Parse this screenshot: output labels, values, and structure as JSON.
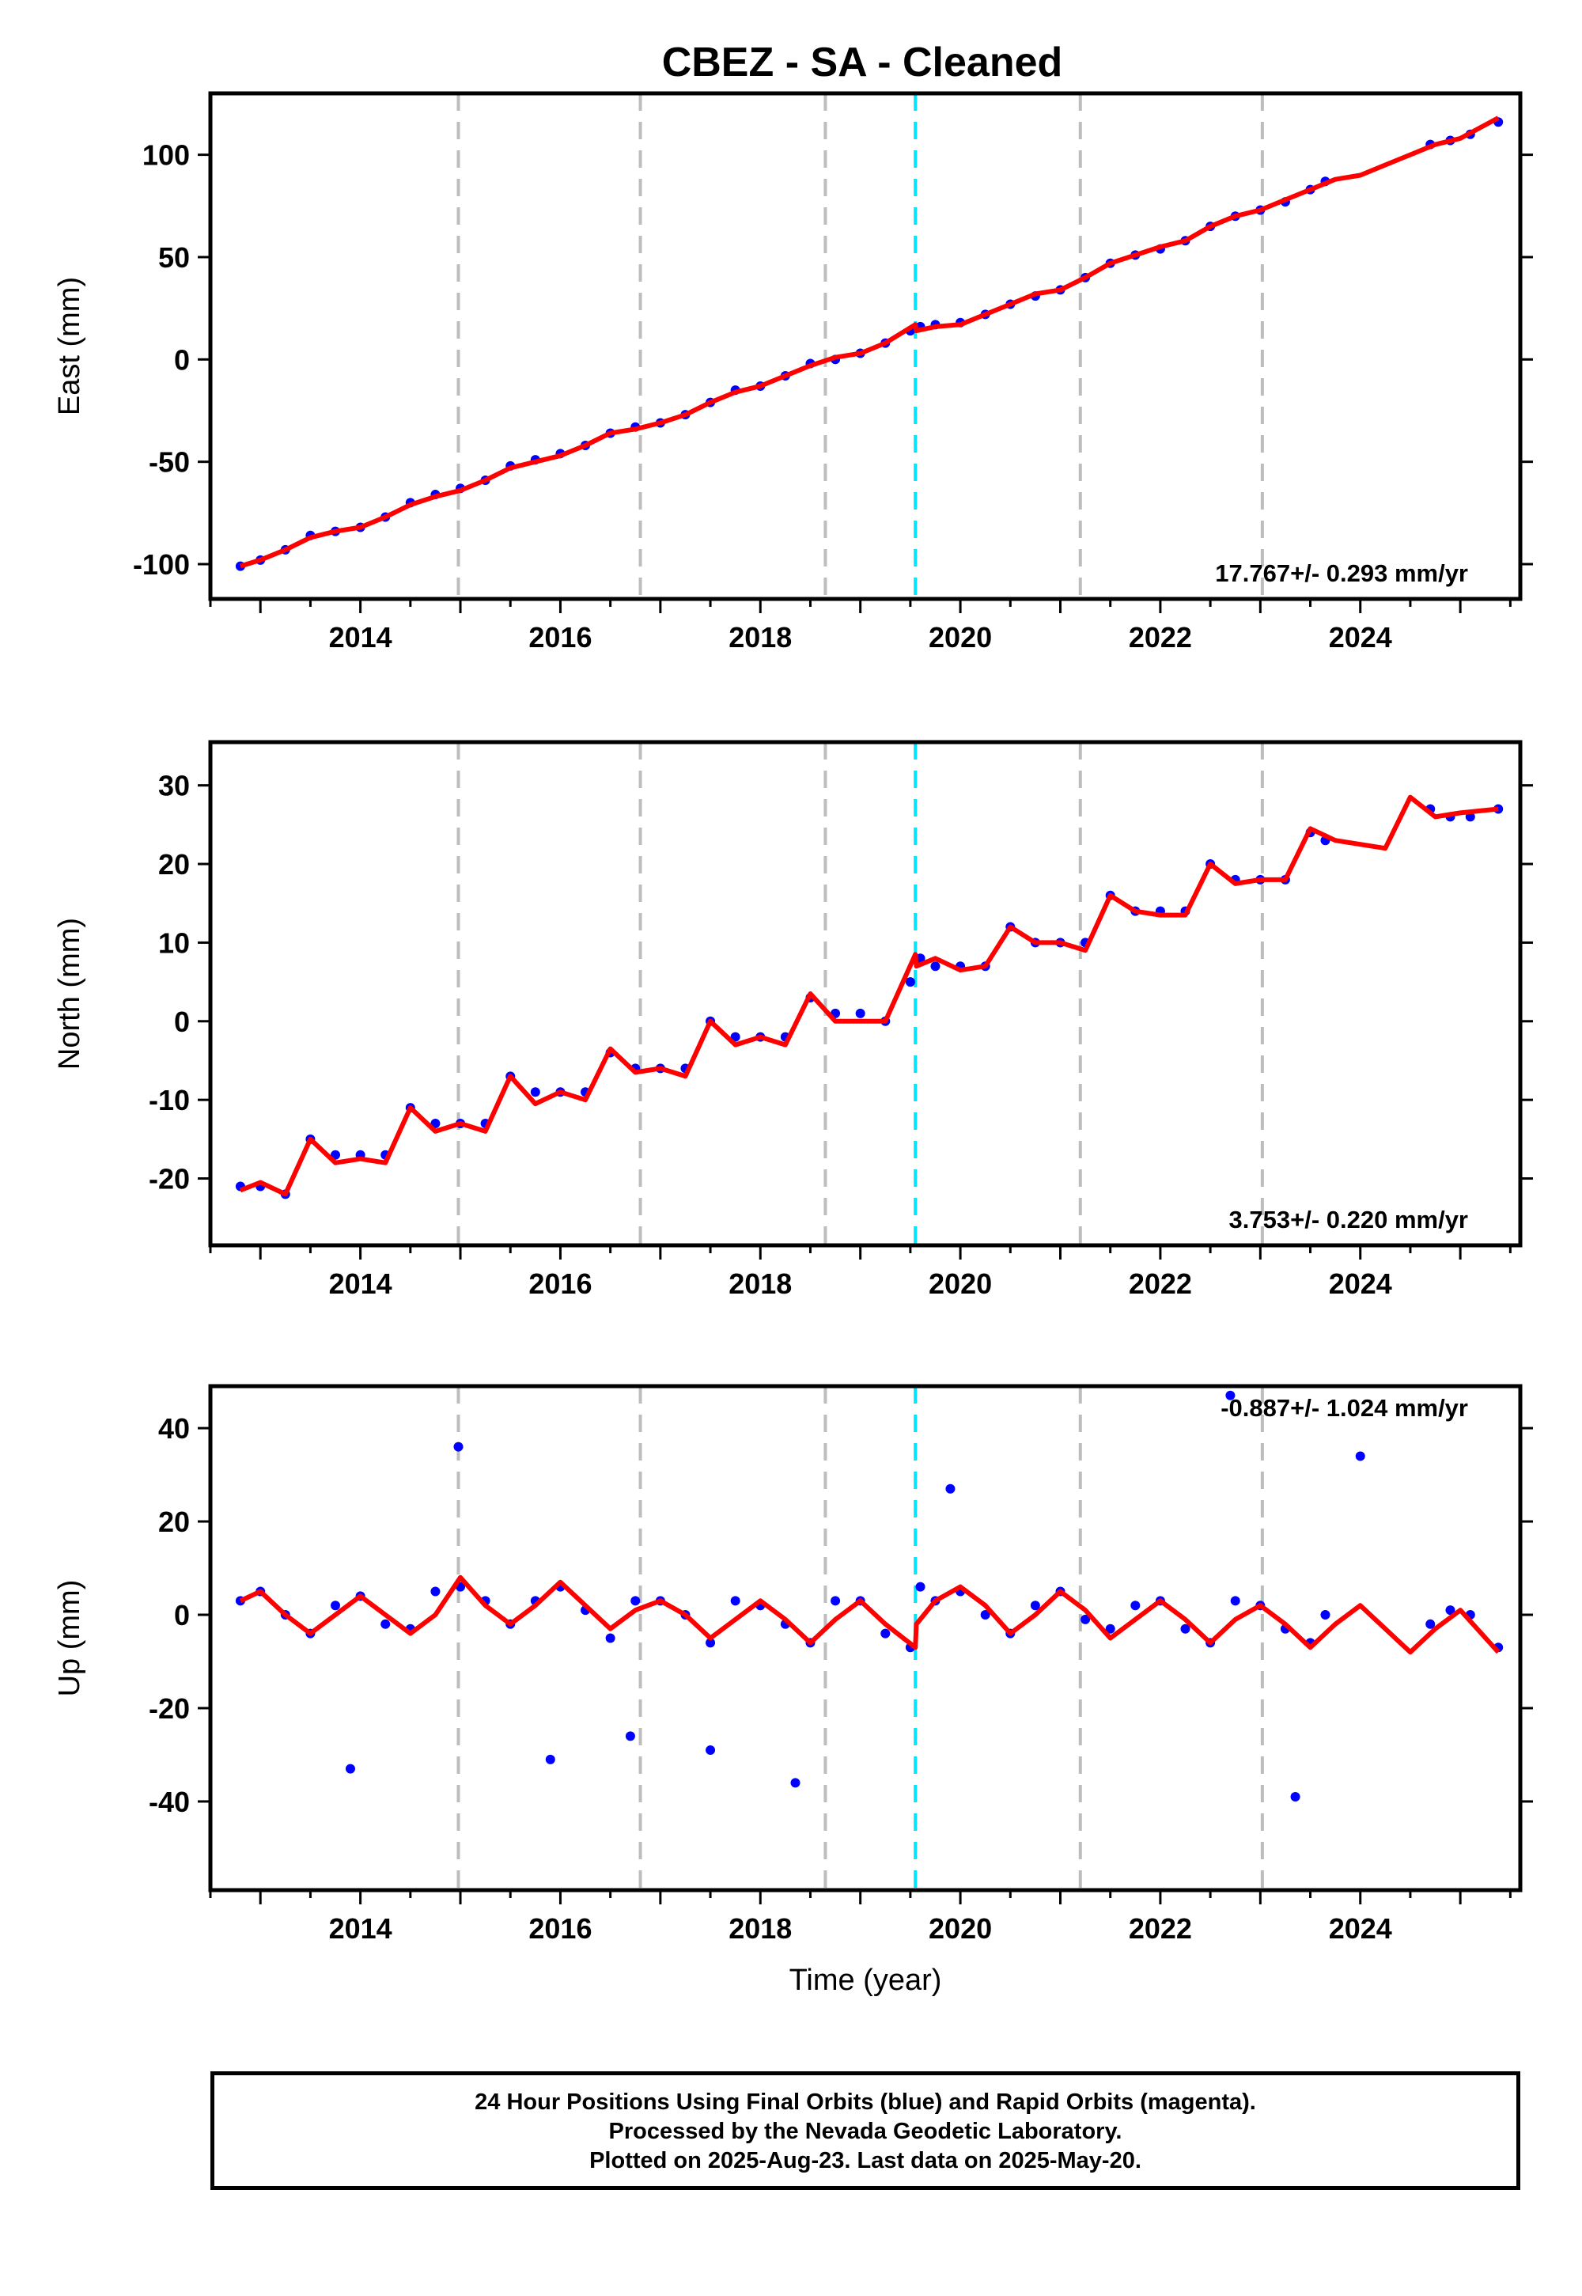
{
  "title": "CBEZ  - SA - Cleaned",
  "chart_data": [
    {
      "type": "scatter",
      "ylabel": "East (mm)",
      "xlim": [
        2012.5,
        2025.6
      ],
      "ylim": [
        -117,
        130
      ],
      "yticks": [
        -100,
        -50,
        0,
        50,
        100
      ],
      "xticks": [
        2014,
        2016,
        2018,
        2020,
        2022,
        2024
      ],
      "rate_label": "17.767+/- 0.293 mm/yr",
      "series": [
        {
          "color": "#0000ff",
          "x": [
            2012.8,
            2013.0,
            2013.25,
            2013.5,
            2013.75,
            2014.0,
            2014.25,
            2014.5,
            2014.75,
            2015.0,
            2015.25,
            2015.5,
            2015.75,
            2016.0,
            2016.25,
            2016.5,
            2016.75,
            2017.0,
            2017.25,
            2017.5,
            2017.75,
            2018.0,
            2018.25,
            2018.5,
            2018.75,
            2019.0,
            2019.25,
            2019.5,
            2019.6,
            2019.75,
            2020.0,
            2020.25,
            2020.5,
            2020.75,
            2021.0,
            2021.25,
            2021.5,
            2021.75,
            2022.0,
            2022.25,
            2022.5,
            2022.75,
            2023.0,
            2023.25,
            2023.5,
            2023.65,
            2024.7,
            2024.9,
            2025.1,
            2025.38
          ],
          "y": [
            -101,
            -98,
            -93,
            -86,
            -84,
            -82,
            -77,
            -70,
            -66,
            -63,
            -59,
            -52,
            -49,
            -46,
            -42,
            -36,
            -33,
            -31,
            -27,
            -21,
            -15,
            -13,
            -8,
            -2,
            0,
            3,
            8,
            14,
            16,
            17,
            18,
            22,
            27,
            31,
            34,
            40,
            47,
            51,
            54,
            58,
            65,
            70,
            73,
            77,
            83,
            87,
            105,
            107,
            110,
            116
          ]
        },
        {
          "color": "#ff0000",
          "x": [
            2012.8,
            2013.0,
            2013.25,
            2013.5,
            2013.75,
            2014.0,
            2014.25,
            2014.5,
            2014.75,
            2015.0,
            2015.25,
            2015.5,
            2015.75,
            2016.0,
            2016.25,
            2016.5,
            2016.75,
            2017.0,
            2017.25,
            2017.5,
            2017.75,
            2018.0,
            2018.25,
            2018.5,
            2018.75,
            2019.0,
            2019.25,
            2019.55,
            2019.56,
            2019.75,
            2020.0,
            2020.25,
            2020.5,
            2020.75,
            2021.0,
            2021.25,
            2021.5,
            2021.75,
            2022.0,
            2022.25,
            2022.5,
            2022.75,
            2023.0,
            2023.25,
            2023.5,
            2023.75,
            2024.0,
            2024.25,
            2024.5,
            2024.75,
            2025.0,
            2025.38
          ],
          "y": [
            -101,
            -98,
            -93,
            -87,
            -84,
            -82,
            -77,
            -71,
            -67,
            -64,
            -59,
            -53,
            -50,
            -47,
            -42,
            -36,
            -34,
            -31,
            -27,
            -21,
            -16,
            -13,
            -8,
            -3,
            1,
            3,
            8,
            17,
            14,
            16,
            17,
            22,
            27,
            32,
            34,
            40,
            47,
            51,
            55,
            58,
            65,
            70,
            73,
            78,
            83,
            88,
            90,
            95,
            100,
            105,
            108,
            118
          ]
        }
      ]
    },
    {
      "type": "scatter",
      "ylabel": "North (mm)",
      "xlim": [
        2012.5,
        2025.6
      ],
      "ylim": [
        -28.5,
        35.5
      ],
      "yticks": [
        -20,
        -10,
        0,
        10,
        20,
        30
      ],
      "xticks": [
        2014,
        2016,
        2018,
        2020,
        2022,
        2024
      ],
      "rate_label": "3.753+/- 0.220 mm/yr",
      "series": [
        {
          "color": "#0000ff",
          "x": [
            2012.8,
            2013.0,
            2013.25,
            2013.5,
            2013.75,
            2014.0,
            2014.25,
            2014.5,
            2014.75,
            2015.0,
            2015.25,
            2015.5,
            2015.75,
            2016.0,
            2016.25,
            2016.5,
            2016.75,
            2017.0,
            2017.25,
            2017.5,
            2017.75,
            2018.0,
            2018.25,
            2018.5,
            2018.75,
            2019.0,
            2019.25,
            2019.5,
            2019.6,
            2019.75,
            2020.0,
            2020.25,
            2020.5,
            2020.75,
            2021.0,
            2021.25,
            2021.5,
            2021.75,
            2022.0,
            2022.25,
            2022.5,
            2022.75,
            2023.0,
            2023.25,
            2023.5,
            2023.65,
            2024.7,
            2024.9,
            2025.1,
            2025.38
          ],
          "y": [
            -21,
            -21,
            -22,
            -15,
            -17,
            -17,
            -17,
            -11,
            -13,
            -13,
            -13,
            -7,
            -9,
            -9,
            -9,
            -4,
            -6,
            -6,
            -6,
            0,
            -2,
            -2,
            -2,
            3,
            1,
            1,
            0,
            5,
            8,
            7,
            7,
            7,
            12,
            10,
            10,
            10,
            16,
            14,
            14,
            14,
            20,
            18,
            18,
            18,
            24,
            23,
            27,
            26,
            26,
            27
          ]
        },
        {
          "color": "#ff0000",
          "x": [
            2012.8,
            2013.0,
            2013.25,
            2013.5,
            2013.75,
            2014.0,
            2014.25,
            2014.5,
            2014.75,
            2015.0,
            2015.25,
            2015.5,
            2015.75,
            2016.0,
            2016.25,
            2016.5,
            2016.75,
            2017.0,
            2017.25,
            2017.5,
            2017.75,
            2018.0,
            2018.25,
            2018.5,
            2018.75,
            2019.0,
            2019.25,
            2019.55,
            2019.56,
            2019.75,
            2020.0,
            2020.25,
            2020.5,
            2020.75,
            2021.0,
            2021.25,
            2021.5,
            2021.75,
            2022.0,
            2022.25,
            2022.5,
            2022.75,
            2023.0,
            2023.25,
            2023.5,
            2023.75,
            2024.0,
            2024.25,
            2024.5,
            2024.75,
            2025.0,
            2025.38
          ],
          "y": [
            -21.5,
            -20.5,
            -22,
            -15,
            -18,
            -17.5,
            -18,
            -11,
            -14,
            -13,
            -14,
            -7,
            -10.5,
            -9,
            -10,
            -3.5,
            -6.5,
            -6,
            -7,
            0,
            -3,
            -2,
            -3,
            3.5,
            0,
            0,
            0,
            8.5,
            7,
            8,
            6.5,
            7,
            12,
            10,
            10,
            9,
            16,
            14,
            13.5,
            13.5,
            20,
            17.5,
            18,
            18,
            24.5,
            23,
            22.5,
            22,
            28.5,
            26,
            26.5,
            27
          ]
        }
      ]
    },
    {
      "type": "scatter",
      "ylabel": "Up (mm)",
      "xlabel": "Time (year)",
      "xlim": [
        2012.5,
        2025.6
      ],
      "ylim": [
        -59,
        49
      ],
      "yticks": [
        -40,
        -20,
        0,
        20,
        40
      ],
      "xticks": [
        2014,
        2016,
        2018,
        2020,
        2022,
        2024
      ],
      "rate_label": "-0.887+/- 1.024 mm/yr",
      "series": [
        {
          "color": "#0000ff",
          "x": [
            2012.8,
            2013.0,
            2013.25,
            2013.5,
            2013.75,
            2014.0,
            2014.25,
            2014.5,
            2014.75,
            2015.0,
            2015.25,
            2015.5,
            2015.75,
            2016.0,
            2016.25,
            2016.5,
            2016.75,
            2017.0,
            2017.25,
            2017.5,
            2017.75,
            2018.0,
            2018.25,
            2018.5,
            2018.75,
            2019.0,
            2019.25,
            2019.5,
            2019.6,
            2019.75,
            2020.0,
            2020.25,
            2020.5,
            2020.75,
            2021.0,
            2021.25,
            2021.5,
            2021.75,
            2022.0,
            2022.25,
            2022.5,
            2022.75,
            2023.0,
            2023.25,
            2023.5,
            2023.65,
            2024.7,
            2024.9,
            2025.1,
            2025.38,
            2013.9,
            2014.98,
            2015.9,
            2016.7,
            2017.5,
            2018.35,
            2019.9,
            2022.7,
            2023.35,
            2024.0
          ],
          "y": [
            3,
            5,
            0,
            -4,
            2,
            4,
            -2,
            -3,
            5,
            6,
            3,
            -2,
            3,
            6,
            1,
            -5,
            3,
            3,
            0,
            -6,
            3,
            2,
            -2,
            -6,
            3,
            3,
            -4,
            -7,
            6,
            3,
            5,
            0,
            -4,
            2,
            5,
            -1,
            -3,
            2,
            3,
            -3,
            -6,
            3,
            2,
            -3,
            -6,
            0,
            -2,
            1,
            0,
            -7,
            -33,
            36,
            -31,
            -26,
            -29,
            -36,
            27,
            47,
            -39,
            34
          ]
        },
        {
          "color": "#ff0000",
          "x": [
            2012.8,
            2013.0,
            2013.25,
            2013.5,
            2013.75,
            2014.0,
            2014.25,
            2014.5,
            2014.75,
            2015.0,
            2015.25,
            2015.5,
            2015.75,
            2016.0,
            2016.25,
            2016.5,
            2016.75,
            2017.0,
            2017.25,
            2017.5,
            2017.75,
            2018.0,
            2018.25,
            2018.5,
            2018.75,
            2019.0,
            2019.25,
            2019.55,
            2019.56,
            2019.75,
            2020.0,
            2020.25,
            2020.5,
            2020.75,
            2021.0,
            2021.25,
            2021.5,
            2021.75,
            2022.0,
            2022.25,
            2022.5,
            2022.75,
            2023.0,
            2023.25,
            2023.5,
            2023.75,
            2024.0,
            2024.25,
            2024.5,
            2024.75,
            2025.0,
            2025.38
          ],
          "y": [
            3,
            5,
            0,
            -4,
            0,
            4,
            0,
            -4,
            0,
            8,
            2,
            -2,
            2,
            7,
            2,
            -3,
            1,
            3,
            0,
            -5,
            -1,
            3,
            -1,
            -6,
            -1,
            3,
            -2,
            -7,
            -2,
            3,
            6,
            2,
            -4,
            0,
            5,
            1,
            -5,
            -1,
            3,
            -1,
            -6,
            -1,
            2,
            -2,
            -7,
            -2,
            2,
            -3,
            -8,
            -3,
            1,
            -8
          ]
        }
      ]
    }
  ],
  "footer": {
    "line1": "24 Hour Positions Using Final Orbits (blue) and Rapid Orbits (magenta).",
    "line2": "Processed by the Nevada Geodetic Laboratory.",
    "line3": "Plotted on 2025-Aug-23. Last data on 2025-May-20."
  },
  "events": {
    "gray_lines": [
      2014.98,
      2016.8,
      2018.65,
      2021.2,
      2023.02
    ],
    "cyan_line": 2019.55,
    "gray_color": "#bdbdbd",
    "cyan_color": "#00e5ff"
  }
}
